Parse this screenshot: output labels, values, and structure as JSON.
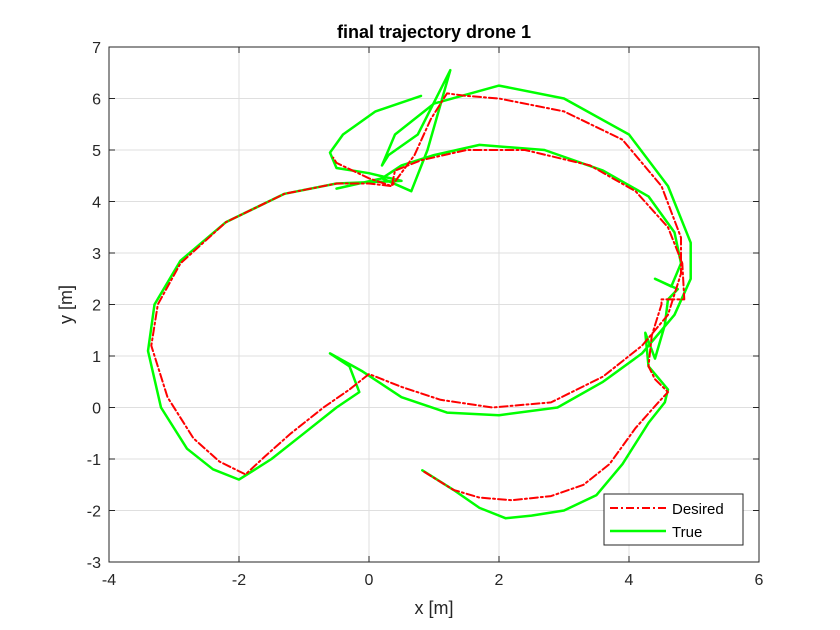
{
  "colors": {
    "desired": "#ff0000",
    "true": "#00ff00",
    "axis": "#262626",
    "grid": "#dfdfdf"
  },
  "chart_data": {
    "type": "line",
    "title": "final trajectory drone 1",
    "xlabel": "x [m]",
    "ylabel": "y [m]",
    "xlim": [
      -4,
      6
    ],
    "ylim": [
      -3,
      7
    ],
    "xticks": [
      "-4",
      "-2",
      "0",
      "2",
      "4",
      "6"
    ],
    "yticks": [
      "-3",
      "-2",
      "-1",
      "0",
      "1",
      "2",
      "3",
      "4",
      "5",
      "6",
      "7"
    ],
    "grid": true,
    "legend_position": "bottom-right",
    "series": [
      {
        "name": "Desired",
        "color": "#ff0000",
        "line_style": "dash-dot",
        "points": [
          [
            0.85,
            -1.25
          ],
          [
            1.3,
            -1.6
          ],
          [
            1.7,
            -1.75
          ],
          [
            2.2,
            -1.8
          ],
          [
            2.8,
            -1.72
          ],
          [
            3.3,
            -1.5
          ],
          [
            3.7,
            -1.1
          ],
          [
            4.1,
            -0.4
          ],
          [
            4.45,
            0.1
          ],
          [
            4.6,
            0.3
          ],
          [
            4.4,
            0.55
          ],
          [
            4.3,
            0.8
          ],
          [
            4.35,
            1.4
          ],
          [
            4.5,
            2.0
          ],
          [
            4.5,
            2.1
          ],
          [
            4.85,
            2.1
          ],
          [
            4.82,
            2.8
          ],
          [
            4.6,
            3.5
          ],
          [
            4.1,
            4.2
          ],
          [
            3.4,
            4.7
          ],
          [
            2.4,
            5.0
          ],
          [
            1.5,
            5.0
          ],
          [
            0.8,
            4.8
          ],
          [
            0.4,
            4.6
          ],
          [
            0.35,
            4.3
          ],
          [
            0.7,
            4.9
          ],
          [
            0.95,
            5.6
          ],
          [
            1.2,
            6.1
          ],
          [
            1.5,
            6.05
          ],
          [
            2.0,
            6.0
          ],
          [
            3.0,
            5.75
          ],
          [
            3.9,
            5.2
          ],
          [
            4.5,
            4.3
          ],
          [
            4.8,
            3.3
          ],
          [
            4.8,
            2.6
          ],
          [
            4.6,
            1.8
          ],
          [
            4.2,
            1.2
          ],
          [
            3.6,
            0.6
          ],
          [
            2.8,
            0.1
          ],
          [
            1.9,
            0.0
          ],
          [
            1.1,
            0.15
          ],
          [
            0.5,
            0.4
          ],
          [
            0.0,
            0.65
          ],
          [
            -0.3,
            0.35
          ],
          [
            -0.7,
            0.0
          ],
          [
            -1.2,
            -0.5
          ],
          [
            -1.6,
            -0.95
          ],
          [
            -1.9,
            -1.3
          ],
          [
            -2.3,
            -1.05
          ],
          [
            -2.7,
            -0.6
          ],
          [
            -3.1,
            0.2
          ],
          [
            -3.35,
            1.2
          ],
          [
            -3.25,
            2.0
          ],
          [
            -2.9,
            2.8
          ],
          [
            -2.2,
            3.6
          ],
          [
            -1.3,
            4.15
          ],
          [
            -0.5,
            4.35
          ],
          [
            0.0,
            4.35
          ],
          [
            0.35,
            4.3
          ],
          [
            0.0,
            4.45
          ],
          [
            -0.5,
            4.75
          ],
          [
            -0.55,
            4.85
          ]
        ]
      },
      {
        "name": "True",
        "color": "#00ff00",
        "line_style": "solid",
        "points": [
          [
            0.82,
            -1.22
          ],
          [
            1.3,
            -1.6
          ],
          [
            1.7,
            -1.95
          ],
          [
            2.1,
            -2.15
          ],
          [
            2.5,
            -2.1
          ],
          [
            3.0,
            -2.0
          ],
          [
            3.5,
            -1.7
          ],
          [
            3.9,
            -1.1
          ],
          [
            4.3,
            -0.3
          ],
          [
            4.55,
            0.1
          ],
          [
            4.6,
            0.35
          ],
          [
            4.3,
            0.8
          ],
          [
            4.25,
            1.45
          ],
          [
            4.4,
            0.95
          ],
          [
            4.55,
            1.6
          ],
          [
            4.6,
            2.1
          ],
          [
            4.75,
            2.3
          ],
          [
            4.4,
            2.5
          ],
          [
            4.65,
            2.35
          ],
          [
            4.8,
            2.8
          ],
          [
            4.7,
            3.4
          ],
          [
            4.3,
            4.1
          ],
          [
            3.6,
            4.6
          ],
          [
            2.7,
            5.0
          ],
          [
            1.7,
            5.1
          ],
          [
            1.0,
            4.9
          ],
          [
            0.5,
            4.7
          ],
          [
            0.2,
            4.45
          ],
          [
            -0.5,
            4.25
          ],
          [
            0.2,
            4.45
          ],
          [
            0.65,
            4.2
          ],
          [
            0.9,
            5.0
          ],
          [
            1.25,
            6.55
          ],
          [
            0.75,
            5.3
          ],
          [
            0.3,
            4.9
          ],
          [
            0.2,
            4.7
          ],
          [
            0.4,
            5.3
          ],
          [
            1.0,
            5.9
          ],
          [
            2.0,
            6.25
          ],
          [
            3.0,
            6.0
          ],
          [
            4.0,
            5.3
          ],
          [
            4.6,
            4.3
          ],
          [
            4.95,
            3.2
          ],
          [
            4.95,
            2.5
          ],
          [
            4.7,
            1.8
          ],
          [
            4.2,
            1.05
          ],
          [
            3.6,
            0.5
          ],
          [
            2.9,
            0.0
          ],
          [
            2.0,
            -0.15
          ],
          [
            1.2,
            -0.1
          ],
          [
            0.5,
            0.2
          ],
          [
            -0.1,
            0.7
          ],
          [
            -0.6,
            1.05
          ],
          [
            -0.3,
            0.8
          ],
          [
            -0.15,
            0.3
          ],
          [
            -0.5,
            0.0
          ],
          [
            -1.0,
            -0.5
          ],
          [
            -1.5,
            -1.0
          ],
          [
            -2.0,
            -1.4
          ],
          [
            -2.4,
            -1.2
          ],
          [
            -2.8,
            -0.8
          ],
          [
            -3.2,
            0.0
          ],
          [
            -3.4,
            1.1
          ],
          [
            -3.3,
            2.0
          ],
          [
            -2.9,
            2.85
          ],
          [
            -2.2,
            3.6
          ],
          [
            -1.3,
            4.15
          ],
          [
            -0.5,
            4.35
          ],
          [
            0.5,
            4.4
          ],
          [
            0.0,
            4.55
          ],
          [
            -0.5,
            4.65
          ],
          [
            -0.6,
            4.95
          ],
          [
            -0.4,
            5.3
          ],
          [
            0.1,
            5.75
          ],
          [
            0.8,
            6.05
          ]
        ]
      }
    ]
  }
}
